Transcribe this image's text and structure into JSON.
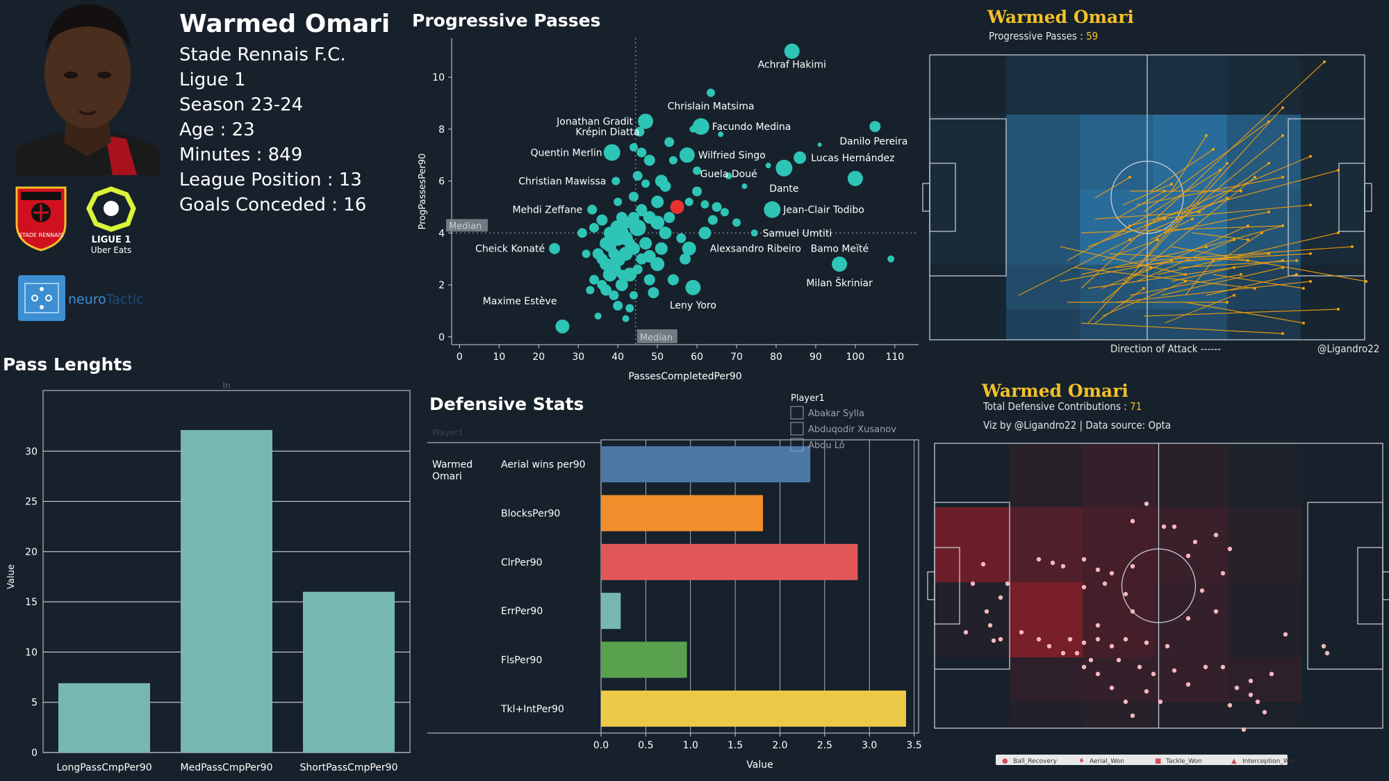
{
  "player": {
    "name": "Warmed Omari",
    "club": "Stade Rennais F.C.",
    "league": "Ligue 1",
    "season": "Season 23-24",
    "age": "Age : 23",
    "minutes": "Minutes : 849",
    "league_position": "League Position : 13",
    "goals_conceded": "Goals Conceded : 16"
  },
  "logos": {
    "club_text": "STADE RENNAIS",
    "league_text_1": "LIGUE 1",
    "league_text_2": "Uber Eats",
    "brand_1": "neuro",
    "brand_2": "Tactic"
  },
  "colors": {
    "background": "#17212b",
    "teal": "#2ec4b6",
    "highlight": "#e8322e",
    "bar_teal": "#76b7b2",
    "gold": "#f2c028",
    "arrow": "#f5a00a",
    "pitch_blue": "#2f7fb5",
    "pitch_red": "#8a1f2a"
  },
  "chart_data": [
    {
      "type": "scatter",
      "title": "Progressive Passes",
      "xlabel": "PassesCompletedPer90",
      "ylabel": "ProgPassesPer90",
      "xlim": [
        -2,
        116
      ],
      "ylim": [
        -0.3,
        11.5
      ],
      "xticks": [
        0,
        10,
        20,
        30,
        40,
        50,
        60,
        70,
        80,
        90,
        100,
        110
      ],
      "yticks": [
        0,
        2,
        4,
        6,
        8,
        10
      ],
      "median_x": 44.5,
      "median_y": 4.0,
      "median_label": "Median",
      "highlight": {
        "name": "Warmed Omari",
        "x": 55,
        "y": 5.0
      },
      "labeled_points": [
        {
          "name": "Achraf Hakimi",
          "x": 84,
          "y": 11.0
        },
        {
          "name": "Chrislain Matsima",
          "x": 63.5,
          "y": 9.4
        },
        {
          "name": "Jonathan Gradit",
          "x": 47,
          "y": 8.3
        },
        {
          "name": "Facundo Medina",
          "x": 61,
          "y": 8.1
        },
        {
          "name": "Krépin Diatta",
          "x": 45.5,
          "y": 7.9
        },
        {
          "name": "Danilo Pereira",
          "x": 105,
          "y": 8.1
        },
        {
          "name": "Quentin Merlin",
          "x": 38.5,
          "y": 7.1
        },
        {
          "name": "Wilfried Singo",
          "x": 57.5,
          "y": 7.0
        },
        {
          "name": "Lucas Hernández",
          "x": 86,
          "y": 6.9
        },
        {
          "name": "Christian Mawissa",
          "x": 39.5,
          "y": 6.0
        },
        {
          "name": "Dante",
          "x": 82,
          "y": 6.5
        },
        {
          "name": "Guela Doué",
          "x": 68,
          "y": 6.2
        },
        {
          "name": "Mehdi Zeffane",
          "x": 33.5,
          "y": 4.9
        },
        {
          "name": "Jean-Clair Todibo",
          "x": 79,
          "y": 4.9
        },
        {
          "name": "Samuel Umtiti",
          "x": 74.5,
          "y": 4.0
        },
        {
          "name": "Cheick Konaté",
          "x": 24,
          "y": 3.4
        },
        {
          "name": "Alexsandro Ribeiro",
          "x": 58,
          "y": 3.4
        },
        {
          "name": "Bamo Meïté",
          "x": 109,
          "y": 3.0
        },
        {
          "name": "Milan Škriniar",
          "x": 96,
          "y": 2.8
        },
        {
          "name": "Maxime Estève",
          "x": 26,
          "y": 0.4
        },
        {
          "name": "Leny Yoro",
          "x": 59,
          "y": 1.9
        }
      ],
      "points": [
        [
          45,
          4.2,
          12
        ],
        [
          42,
          3.8,
          10
        ],
        [
          38,
          3.5,
          9
        ],
        [
          40,
          3.0,
          11
        ],
        [
          36,
          4.5,
          8
        ],
        [
          43,
          2.4,
          10
        ],
        [
          41,
          2.0,
          9
        ],
        [
          44,
          4.6,
          8
        ],
        [
          39,
          2.6,
          10
        ],
        [
          35,
          3.2,
          8
        ],
        [
          47,
          3.6,
          9
        ],
        [
          50,
          4.4,
          10
        ],
        [
          48,
          2.2,
          8
        ],
        [
          52,
          4.0,
          9
        ],
        [
          40,
          4.2,
          11
        ],
        [
          37,
          2.8,
          9
        ],
        [
          34,
          2.2,
          7
        ],
        [
          46,
          3.0,
          8
        ],
        [
          42,
          3.2,
          10
        ],
        [
          38,
          4.0,
          9
        ],
        [
          44,
          5.4,
          7
        ],
        [
          48,
          4.6,
          9
        ],
        [
          53,
          4.6,
          8
        ],
        [
          51,
          3.4,
          9
        ],
        [
          49,
          1.7,
          8
        ],
        [
          56,
          3.8,
          7
        ],
        [
          46,
          4.8,
          6
        ],
        [
          43,
          1.1,
          6
        ],
        [
          39,
          1.6,
          7
        ],
        [
          33,
          1.8,
          6
        ],
        [
          35,
          0.8,
          5
        ],
        [
          47,
          5.9,
          6
        ],
        [
          48,
          6.8,
          8
        ],
        [
          51,
          6.0,
          9
        ],
        [
          53,
          7.5,
          7
        ],
        [
          54,
          2.2,
          8
        ],
        [
          57,
          3.0,
          8
        ],
        [
          62,
          4.0,
          9
        ],
        [
          64,
          4.5,
          7
        ],
        [
          67,
          4.8,
          6
        ],
        [
          62,
          5.1,
          6
        ],
        [
          59,
          8.0,
          5
        ],
        [
          60,
          6.4,
          6
        ],
        [
          50,
          5.2,
          9
        ],
        [
          45,
          6.2,
          7
        ],
        [
          44,
          7.3,
          6
        ],
        [
          46,
          7.1,
          7
        ],
        [
          40,
          1.2,
          7
        ],
        [
          36,
          2.0,
          7
        ],
        [
          41,
          4.6,
          8
        ],
        [
          45,
          2.6,
          7
        ],
        [
          43,
          3.6,
          8
        ],
        [
          37,
          3.6,
          9
        ],
        [
          39,
          3.2,
          8
        ],
        [
          41,
          2.4,
          7
        ],
        [
          32,
          3.2,
          6
        ],
        [
          31,
          4.0,
          7
        ],
        [
          34,
          4.2,
          7
        ],
        [
          36,
          3.0,
          8
        ],
        [
          37,
          1.8,
          8
        ],
        [
          40,
          5.2,
          6
        ],
        [
          42,
          0.7,
          5
        ],
        [
          44,
          1.6,
          6
        ],
        [
          58,
          5.2,
          6
        ],
        [
          60,
          5.6,
          7
        ],
        [
          65,
          5.0,
          7
        ],
        [
          70,
          4.4,
          6
        ],
        [
          72,
          5.8,
          4
        ],
        [
          78,
          6.6,
          4
        ],
        [
          91,
          7.4,
          3
        ],
        [
          100,
          6.1,
          11
        ],
        [
          66,
          7.8,
          4
        ],
        [
          54,
          6.8,
          6
        ],
        [
          52,
          5.8,
          8
        ],
        [
          48,
          3.1,
          9
        ],
        [
          46,
          4.9,
          8
        ],
        [
          50,
          2.8,
          10
        ],
        [
          44,
          3.4,
          9
        ],
        [
          38,
          2.4,
          10
        ],
        [
          40,
          3.8,
          11
        ],
        [
          41,
          4.0,
          10
        ],
        [
          42,
          4.4,
          9
        ]
      ]
    },
    {
      "type": "bar",
      "title": "Pass Lenghts",
      "legend_title": "In",
      "categories": [
        "LongPassCmpPer90",
        "MedPassCmpPer90",
        "ShortPassCmpPer90"
      ],
      "values": [
        6.9,
        32.1,
        16.0
      ],
      "ylabel": "Value",
      "ylim": [
        0,
        35
      ],
      "yticks": [
        0,
        5,
        10,
        15,
        20,
        25,
        30
      ]
    },
    {
      "type": "bar",
      "orientation": "horizontal",
      "title": "Defensive Stats",
      "xlabel": "Value",
      "row_label": "Warmed Omari",
      "column_header": "Player1",
      "categories": [
        "Aerial wins per90",
        "BlocksPer90",
        "ClrPer90",
        "ErrPer90",
        "FlsPer90",
        "Tkl+IntPer90"
      ],
      "values": [
        2.34,
        1.81,
        2.87,
        0.22,
        0.96,
        3.41
      ],
      "bar_colors": [
        "#4c78a8",
        "#f28e2b",
        "#e15759",
        "#76b7b2",
        "#59a14f",
        "#edc948"
      ],
      "xlim": [
        0,
        3.55
      ],
      "xticks": [
        0.0,
        0.5,
        1.0,
        1.5,
        2.0,
        2.5,
        3.0,
        3.5
      ],
      "legend_title": "Player1",
      "legend_items": [
        "Abakar Sylla",
        "Abduqodir Xusanov",
        "Abdu Lô"
      ]
    }
  ],
  "pass_map": {
    "title": "Warmed Omari",
    "subtitle_prefix": "Progressive Passes : ",
    "count": "59",
    "direction_label": "Direction of Attack ------",
    "credit": "@Ligandro22"
  },
  "defense_map": {
    "title": "Warmed Omari",
    "subtitle_prefix": "Total Defensive Contributions : ",
    "count": "71",
    "viz_credit": "Viz by @Ligandro22 | Data source: Opta",
    "legend": [
      "Ball_Recovery",
      "Aerial_Won",
      "Tackle_Won",
      "Interception_Won"
    ]
  }
}
